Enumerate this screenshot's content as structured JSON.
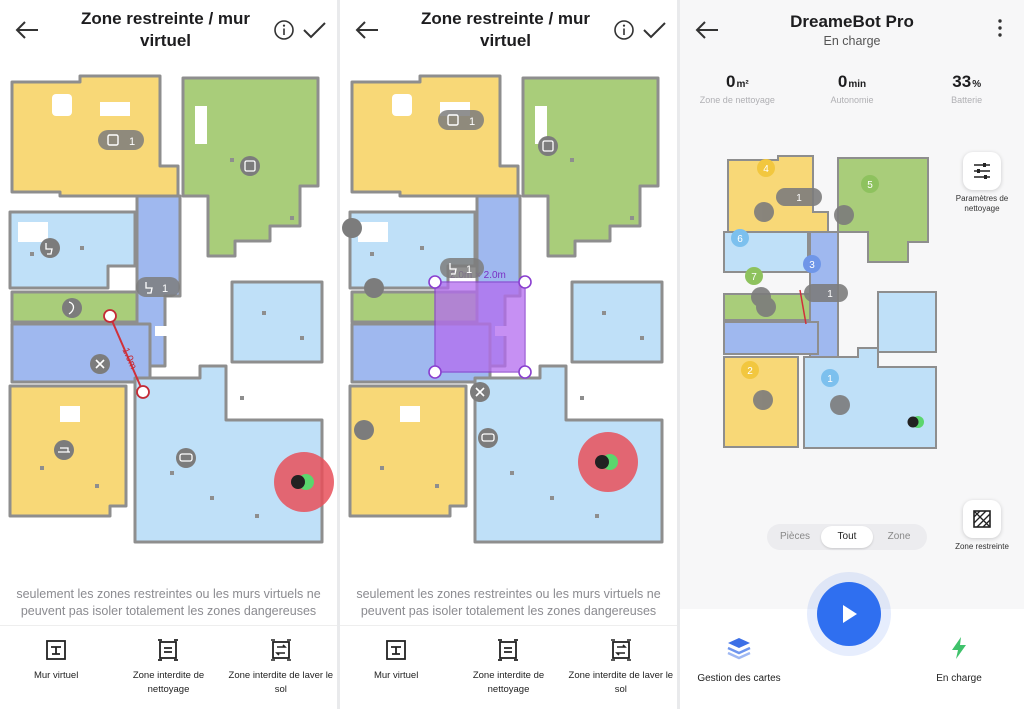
{
  "screens": [
    {
      "title": "Zone restreinte / mur virtuel",
      "wall_label": "1.0m",
      "hint": "seulement les zones restreintes ou les murs virtuels ne peuvent pas isoler totalement les zones dangereuses",
      "room_labels": {
        "kitchen": "1",
        "toilet": "1"
      },
      "tools": [
        {
          "label": "Mur virtuel",
          "icon": "virtual-wall-icon"
        },
        {
          "label": "Zone interdite de nettoyage",
          "icon": "no-go-zone-icon"
        },
        {
          "label": "Zone interdite de laver le sol",
          "icon": "no-mop-zone-icon"
        }
      ]
    },
    {
      "title": "Zone restreinte / mur virtuel",
      "zone_size": "2.0m × 2.0m",
      "hint": "seulement les zones restreintes ou les murs virtuels ne peuvent pas isoler totalement les zones dangereuses",
      "room_labels": {
        "kitchen": "1",
        "toilet": "1"
      },
      "tools": [
        {
          "label": "Mur virtuel",
          "icon": "virtual-wall-icon"
        },
        {
          "label": "Zone interdite de nettoyage",
          "icon": "no-go-zone-icon"
        },
        {
          "label": "Zone interdite de laver le sol",
          "icon": "no-mop-zone-icon"
        }
      ]
    }
  ],
  "device": {
    "name": "DreameBot Pro",
    "status": "En charge",
    "stats": [
      {
        "value": "0",
        "unit": "m²",
        "label": "Zone de nettoyage"
      },
      {
        "value": "0",
        "unit": "min",
        "label": "Autonomie"
      },
      {
        "value": "33",
        "unit": "%",
        "label": "Batterie"
      }
    ],
    "room_numbers": [
      "4",
      "5",
      "6",
      "3",
      "7",
      "2",
      "1"
    ],
    "pills": [
      "1",
      "1"
    ],
    "side_buttons": {
      "settings": "Paramètres de nettoyage",
      "restricted": "Zone restreinte"
    },
    "segments": [
      "Pièces",
      "Tout",
      "Zone"
    ],
    "active_segment": "Tout",
    "bottom": {
      "maps": "Gestion des cartes",
      "charge": "En charge"
    }
  },
  "colors": {
    "yellow": "#f8d877",
    "green": "#a9cd7a",
    "light_blue": "#bfe0f8",
    "blue": "#9fb8ef",
    "accent": "#2f6ff0",
    "zone_purple": "#b46cf0",
    "station_red": "#e8505b"
  }
}
